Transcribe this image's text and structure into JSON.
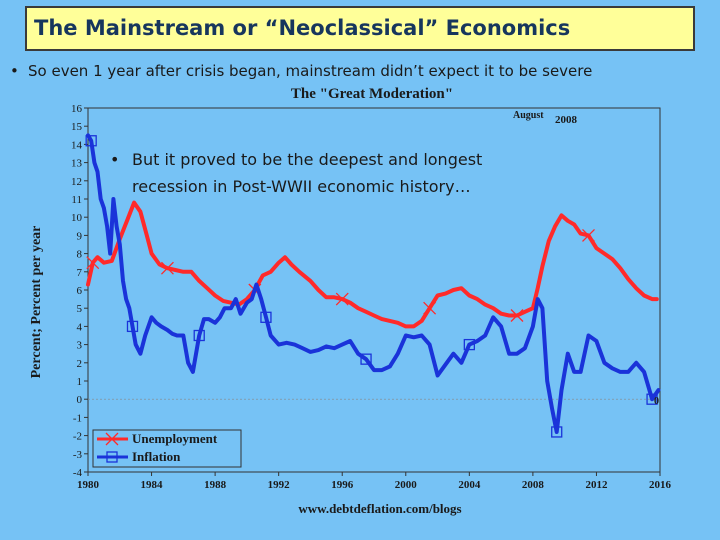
{
  "slide": {
    "title": "The Mainstream or “Neoclassical” Economics",
    "bullet1": "So even 1 year after crisis began, mainstream didn’t expect it to be severe",
    "bullet2_line1": "But it proved to be the deepest and longest",
    "bullet2_line2": "recession in Post-WWII economic history…",
    "bullet_glyph": "•"
  },
  "chart_data": {
    "type": "line",
    "title": "The \"Great Moderation\"",
    "annotation": "August 2008",
    "annotation_month": "August",
    "annotation_year": "2008",
    "xlabel": "",
    "ylabel": "Percent; Percent per year",
    "source": "www.debtdeflation.com/blogs",
    "end_label": "0",
    "xlim": [
      1980,
      2016
    ],
    "ylim": [
      -4,
      16
    ],
    "xticks": [
      1980,
      1984,
      1988,
      1992,
      1996,
      2000,
      2004,
      2008,
      2012,
      2016
    ],
    "yticks": [
      -4,
      -3,
      -2,
      -1,
      0,
      1,
      2,
      3,
      4,
      5,
      6,
      7,
      8,
      9,
      10,
      11,
      12,
      13,
      14,
      15,
      16
    ],
    "legend_position": "bottom-left",
    "series": [
      {
        "name": "Unemployment",
        "color": "#ff2a2a",
        "marker": "x",
        "x": [
          1980,
          1980.3,
          1980.6,
          1981,
          1981.5,
          1982,
          1982.5,
          1982.9,
          1983.3,
          1983.7,
          1984,
          1984.5,
          1985,
          1985.5,
          1986,
          1986.5,
          1987,
          1987.5,
          1988,
          1988.5,
          1989,
          1989.5,
          1990,
          1990.5,
          1991,
          1991.5,
          1992,
          1992.4,
          1992.8,
          1993.3,
          1994,
          1994.5,
          1995,
          1995.5,
          1996,
          1996.5,
          1997,
          1997.5,
          1998,
          1998.5,
          1999,
          1999.5,
          2000,
          2000.5,
          2001,
          2001.5,
          2002,
          2002.5,
          2003,
          2003.5,
          2004,
          2004.5,
          2005,
          2005.5,
          2006,
          2006.5,
          2007,
          2007.5,
          2008,
          2008.3,
          2008.6,
          2009,
          2009.4,
          2009.8,
          2010.2,
          2010.6,
          2011,
          2011.5,
          2012,
          2012.5,
          2013,
          2013.5,
          2014,
          2014.5,
          2015,
          2015.5,
          2015.8
        ],
        "values": [
          6.3,
          7.5,
          7.8,
          7.5,
          7.6,
          8.8,
          9.9,
          10.8,
          10.3,
          9.0,
          8.0,
          7.4,
          7.2,
          7.1,
          7.0,
          7.0,
          6.5,
          6.1,
          5.7,
          5.4,
          5.3,
          5.2,
          5.5,
          6.0,
          6.8,
          7.0,
          7.5,
          7.8,
          7.4,
          7.0,
          6.5,
          6.0,
          5.6,
          5.6,
          5.5,
          5.3,
          5.0,
          4.8,
          4.6,
          4.4,
          4.3,
          4.2,
          4.0,
          4.0,
          4.3,
          5.0,
          5.7,
          5.8,
          6.0,
          6.1,
          5.7,
          5.5,
          5.2,
          5.0,
          4.7,
          4.6,
          4.6,
          4.8,
          5.0,
          6.1,
          7.3,
          8.7,
          9.5,
          10.1,
          9.8,
          9.6,
          9.1,
          9.0,
          8.3,
          8.0,
          7.7,
          7.2,
          6.6,
          6.1,
          5.7,
          5.5,
          5.5
        ]
      },
      {
        "name": "Inflation",
        "color": "#1a33d9",
        "marker": "square",
        "x": [
          1980,
          1980.2,
          1980.4,
          1980.6,
          1980.8,
          1981,
          1981.2,
          1981.4,
          1981.6,
          1981.8,
          1982,
          1982.2,
          1982.4,
          1982.6,
          1982.8,
          1983,
          1983.3,
          1983.6,
          1984,
          1984.3,
          1984.6,
          1985,
          1985.3,
          1985.6,
          1986,
          1986.3,
          1986.6,
          1987,
          1987.3,
          1987.6,
          1988,
          1988.3,
          1988.6,
          1989,
          1989.3,
          1989.6,
          1990,
          1990.3,
          1990.6,
          1990.9,
          1991.2,
          1991.5,
          1992,
          1992.5,
          1993,
          1993.5,
          1994,
          1994.5,
          1995,
          1995.5,
          1996,
          1996.5,
          1997,
          1997.5,
          1998,
          1998.5,
          1999,
          1999.5,
          2000,
          2000.5,
          2001,
          2001.5,
          2002,
          2002.5,
          2003,
          2003.5,
          2004,
          2004.5,
          2005,
          2005.5,
          2006,
          2006.5,
          2007,
          2007.5,
          2008,
          2008.3,
          2008.6,
          2008.9,
          2009.2,
          2009.5,
          2009.8,
          2010.2,
          2010.6,
          2011,
          2011.5,
          2012,
          2012.5,
          2013,
          2013.5,
          2014,
          2014.5,
          2015,
          2015.5,
          2015.9
        ],
        "values": [
          14.5,
          14.2,
          13.0,
          12.5,
          11.0,
          10.5,
          9.5,
          8.0,
          11.0,
          9.5,
          8.5,
          6.5,
          5.5,
          5.0,
          4.0,
          3.0,
          2.5,
          3.5,
          4.5,
          4.2,
          4.0,
          3.8,
          3.6,
          3.5,
          3.5,
          2.0,
          1.5,
          3.5,
          4.4,
          4.4,
          4.2,
          4.5,
          5.0,
          5.0,
          5.5,
          4.7,
          5.3,
          5.5,
          6.3,
          5.5,
          4.5,
          3.5,
          3.0,
          3.1,
          3.0,
          2.8,
          2.6,
          2.7,
          2.9,
          2.8,
          3.0,
          3.2,
          2.5,
          2.2,
          1.6,
          1.6,
          1.8,
          2.5,
          3.5,
          3.4,
          3.5,
          3.0,
          1.3,
          1.9,
          2.5,
          2.0,
          3.0,
          3.2,
          3.5,
          4.5,
          4.0,
          2.5,
          2.5,
          2.8,
          4.0,
          5.5,
          5.0,
          1.0,
          -0.5,
          -1.8,
          0.5,
          2.5,
          1.5,
          1.5,
          3.5,
          3.2,
          2.0,
          1.7,
          1.5,
          1.5,
          2.0,
          1.5,
          0.0,
          0.5
        ]
      }
    ]
  }
}
